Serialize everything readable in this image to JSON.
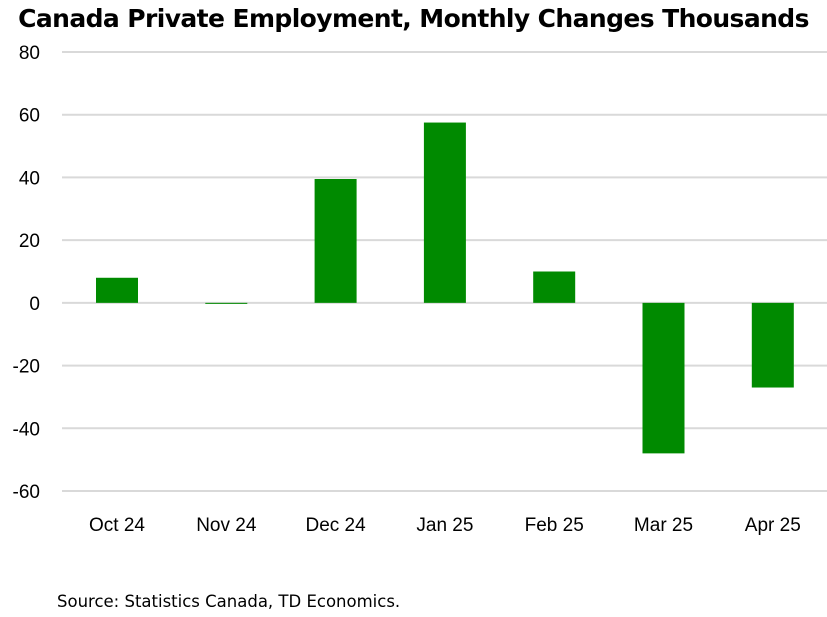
{
  "chart_data": {
    "type": "bar",
    "title": "Canada Private Employment, Monthly Changes Thousands",
    "xlabel": "",
    "ylabel": "",
    "categories": [
      "Oct 24",
      "Nov 24",
      "Dec 24",
      "Jan 25",
      "Feb 25",
      "Mar 25",
      "Apr 25"
    ],
    "values": [
      8,
      -0.3,
      39.5,
      57.5,
      10,
      -48,
      -27
    ],
    "ylim": [
      -60,
      80
    ],
    "yticks": [
      80,
      60,
      40,
      20,
      0,
      -20,
      -40,
      -60
    ],
    "ytick_labels": [
      "80",
      "60",
      "40",
      "20",
      "0",
      "-20",
      "-40",
      "-60"
    ],
    "grid": true,
    "bar_color": "#008a00",
    "grid_color": "#d9d9d9",
    "source": "Source: Statistics Canada, TD Economics."
  }
}
